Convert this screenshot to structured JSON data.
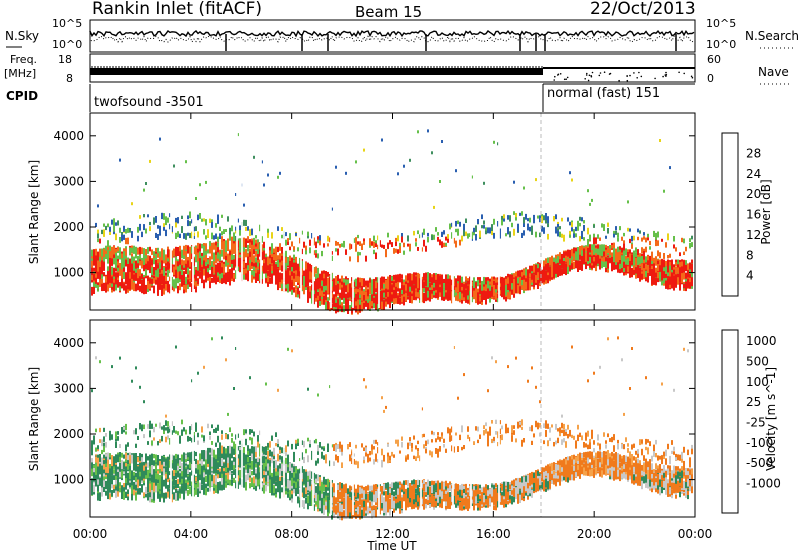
{
  "header": {
    "station": "Rankin Inlet (fitACF)",
    "beam": "Beam 15",
    "date": "22/Oct/2013"
  },
  "noise_panel": {
    "left_label": "N.Sky",
    "left_tick_top": "10^5",
    "left_tick_bottom": "10^0",
    "right_label": "N.Search",
    "right_tick_top": "10^5",
    "right_tick_bottom": "10^0"
  },
  "freq_panel": {
    "left_label_1": "Freq.",
    "left_label_2": "[MHz]",
    "left_tick_top": "18",
    "left_tick_bottom": "8",
    "right_label": "Nave",
    "right_tick_top": "60",
    "right_tick_bottom": "0"
  },
  "cpid": {
    "label": "CPID",
    "modes": [
      "twofsound -3501",
      "normal (fast) 151"
    ]
  },
  "colors": {
    "power": [
      "#2020e0",
      "#2a5fb0",
      "#3f8f5f",
      "#66c04a",
      "#e8d418",
      "#f59b1c",
      "#f46a1a",
      "#ee1a10"
    ],
    "velocity": [
      "#2255cc",
      "#3a78aa",
      "#2f8a5a",
      "#66c04a",
      "#c8c8c8",
      "#f5a24a",
      "#f07a1c",
      "#ee4a14",
      "#e01010"
    ]
  },
  "chart_data": [
    {
      "type": "heatmap",
      "title": "",
      "quantity": "Power",
      "ylabel": "Slant Range [km]",
      "yticks": [
        "1000",
        "2000",
        "3000",
        "4000"
      ],
      "ylim": [
        180,
        4500
      ],
      "colorbar_label": "Power [dB]",
      "colorbar_ticks": [
        "4",
        "8",
        "12",
        "16",
        "20",
        "24",
        "28"
      ],
      "xlim": [
        "00:00",
        "24:00"
      ]
    },
    {
      "type": "heatmap",
      "title": "",
      "quantity": "Velocity",
      "ylabel": "Slant Range [km]",
      "yticks": [
        "1000",
        "2000",
        "3000",
        "4000"
      ],
      "ylim": [
        180,
        4500
      ],
      "colorbar_label": "Velocity [m s^-1]",
      "colorbar_ticks": [
        "1000",
        "500",
        "100",
        "25",
        "-25",
        "-100",
        "-500",
        "-1000"
      ],
      "xlabel": "Time UT",
      "xticks": [
        "00:00",
        "04:00",
        "08:00",
        "12:00",
        "16:00",
        "20:00",
        "00:00"
      ],
      "xlim": [
        "00:00",
        "24:00"
      ]
    }
  ]
}
